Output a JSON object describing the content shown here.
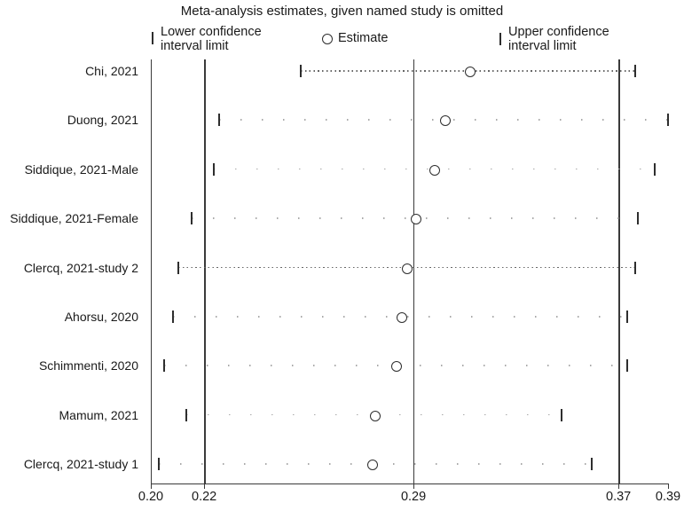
{
  "title": "Meta-analysis estimates, given named study is omitted",
  "legend": {
    "lower_label": "Lower confidence interval limit",
    "estimate_label": "Estimate",
    "upper_label": "Upper confidence interval limit"
  },
  "colors": {
    "background": "#ffffff",
    "text": "#1a1a1a",
    "axis_line": "#3a3a3a",
    "marker_outline": "#2e2e2e",
    "dense_dots": "#666666",
    "sparse_dots": "#a9a9a9"
  },
  "chart_data": {
    "type": "scatter",
    "subtype": "leave-one-out meta-analysis sensitivity (forest) plot",
    "title": "Meta-analysis estimates, given named study is omitted",
    "xlabel": "",
    "ylabel": "",
    "xlim": [
      0.2,
      0.39
    ],
    "grid": false,
    "legend_position": "top",
    "x_ticks": [
      {
        "label": "0.20",
        "value": 0.2
      },
      {
        "label": "0.22",
        "value": 0.2196
      },
      {
        "label": "0.29",
        "value": 0.2965
      },
      {
        "label": "0.37",
        "value": 0.3718
      },
      {
        "label": "0.39",
        "value": 0.39
      }
    ],
    "ref_lines": [
      {
        "name": "pooled-lower",
        "value": 0.2196
      },
      {
        "name": "pooled-estimate",
        "value": 0.2965
      },
      {
        "name": "pooled-upper",
        "value": 0.3718
      }
    ],
    "studies": [
      {
        "label": "Chi, 2021",
        "lower": 0.255,
        "estimate": 0.317,
        "upper": 0.378,
        "line": "dense"
      },
      {
        "label": "Duong, 2021",
        "lower": 0.225,
        "estimate": 0.308,
        "upper": 0.39,
        "line": "sparse"
      },
      {
        "label": "Siddique, 2021-Male",
        "lower": 0.223,
        "estimate": 0.304,
        "upper": 0.385,
        "line": "sparse"
      },
      {
        "label": "Siddique, 2021-Female",
        "lower": 0.215,
        "estimate": 0.297,
        "upper": 0.379,
        "line": "sparse"
      },
      {
        "label": "Clercq, 2021-study 2",
        "lower": 0.21,
        "estimate": 0.294,
        "upper": 0.378,
        "line": "dense"
      },
      {
        "label": "Ahorsu, 2020",
        "lower": 0.208,
        "estimate": 0.292,
        "upper": 0.375,
        "line": "sparse"
      },
      {
        "label": "Schimmenti, 2020",
        "lower": 0.205,
        "estimate": 0.29,
        "upper": 0.375,
        "line": "sparse"
      },
      {
        "label": "Mamum, 2021",
        "lower": 0.213,
        "estimate": 0.282,
        "upper": 0.351,
        "line": "sparse"
      },
      {
        "label": "Clercq, 2021-study 1",
        "lower": 0.203,
        "estimate": 0.281,
        "upper": 0.362,
        "line": "sparse"
      }
    ]
  }
}
